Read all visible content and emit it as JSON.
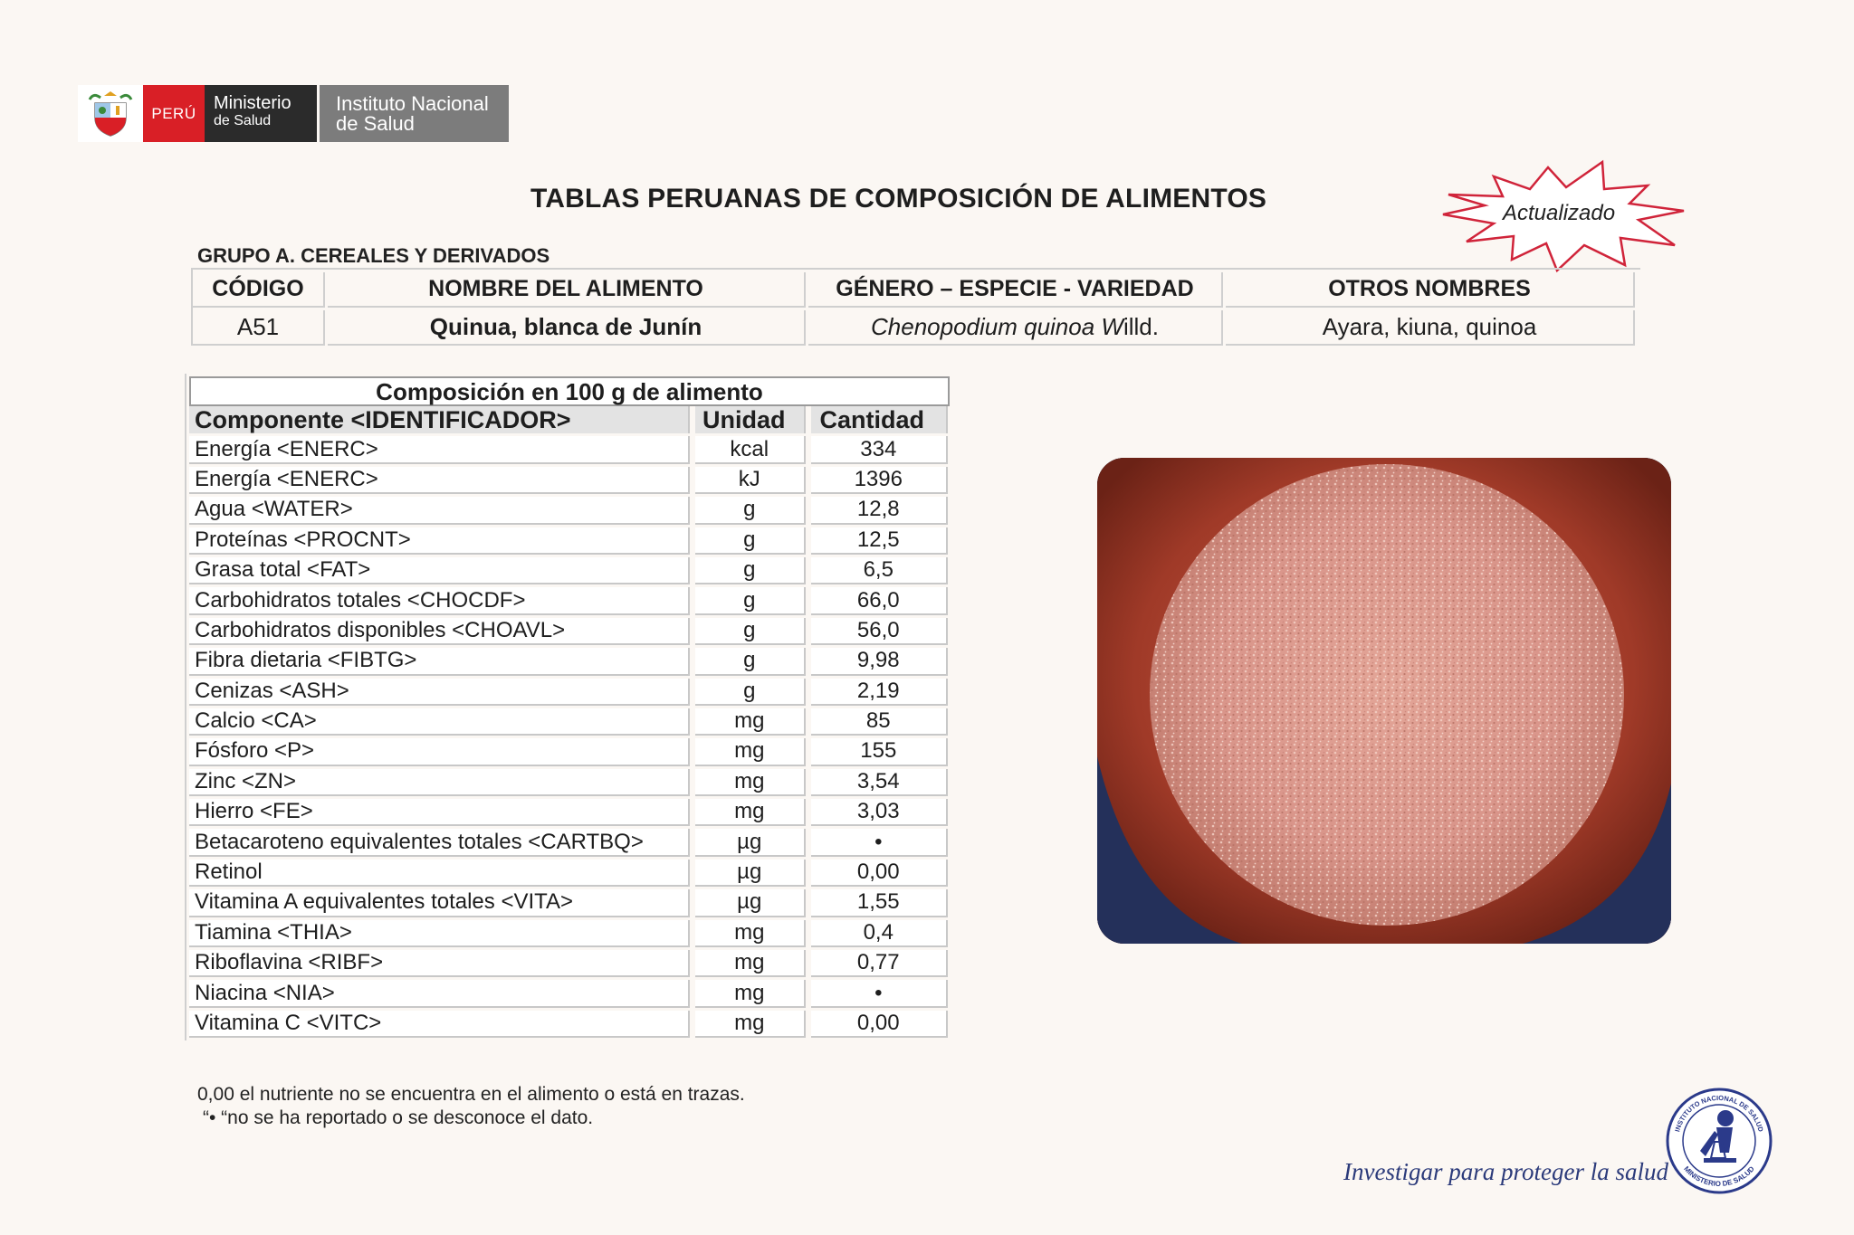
{
  "header": {
    "peru_label": "PERÚ",
    "ministry_line1": "Ministerio",
    "ministry_line2": "de Salud",
    "institute_line1": "Instituto Nacional",
    "institute_line2": "de Salud"
  },
  "title": "TABLAS PERUANAS DE COMPOSICIÓN DE ALIMENTOS",
  "badge": "Actualizado",
  "group": "GRUPO A. CEREALES Y DERIVADOS",
  "food_table": {
    "headers": [
      "CÓDIGO",
      "NOMBRE DEL ALIMENTO",
      "GÉNERO – ESPECIE - VARIEDAD",
      "OTROS NOMBRES"
    ],
    "code": "A51",
    "name": "Quinua, blanca de Junín",
    "scientific_italic": "Chenopodium quinoa W",
    "scientific_rest": "illd.",
    "other_names": "Ayara, kiuna, quinoa"
  },
  "composition": {
    "caption": "Composición en 100 g de alimento",
    "headers": [
      "Componente <IDENTIFICADOR>",
      "Unidad",
      "Cantidad"
    ],
    "rows": [
      {
        "name": "Energía <ENERC>",
        "unit": "kcal",
        "qty": "334"
      },
      {
        "name": "Energía <ENERC>",
        "unit": "kJ",
        "qty": "1396"
      },
      {
        "name": "Agua <WATER>",
        "unit": "g",
        "qty": "12,8"
      },
      {
        "name": "Proteínas <PROCNT>",
        "unit": "g",
        "qty": "12,5"
      },
      {
        "name": "Grasa total <FAT>",
        "unit": "g",
        "qty": "6,5"
      },
      {
        "name": "Carbohidratos totales <CHOCDF>",
        "unit": "g",
        "qty": "66,0"
      },
      {
        "name": "Carbohidratos disponibles <CHOAVL>",
        "unit": "g",
        "qty": "56,0"
      },
      {
        "name": "Fibra dietaria <FIBTG>",
        "unit": "g",
        "qty": "9,98"
      },
      {
        "name": "Cenizas <ASH>",
        "unit": "g",
        "qty": "2,19"
      },
      {
        "name": "Calcio <CA>",
        "unit": "mg",
        "qty": "85"
      },
      {
        "name": "Fósforo <P>",
        "unit": "mg",
        "qty": "155"
      },
      {
        "name": "Zinc <ZN>",
        "unit": "mg",
        "qty": "3,54"
      },
      {
        "name": "Hierro <FE>",
        "unit": "mg",
        "qty": "3,03"
      },
      {
        "name": "Betacaroteno equivalentes totales <CARTBQ>",
        "unit": "µg",
        "qty": "•"
      },
      {
        "name": "Retinol",
        "unit": "µg",
        "qty": "0,00"
      },
      {
        "name": "Vitamina A equivalentes totales <VITA>",
        "unit": "µg",
        "qty": "1,55"
      },
      {
        "name": "Tiamina <THIA>",
        "unit": "mg",
        "qty": "0,4"
      },
      {
        "name": "Riboflavina <RIBF>",
        "unit": "mg",
        "qty": "0,77"
      },
      {
        "name": "Niacina <NIA>",
        "unit": "mg",
        "qty": "•"
      },
      {
        "name": "Vitamina C <VITC>",
        "unit": "mg",
        "qty": "0,00"
      }
    ]
  },
  "footnotes": [
    "0,00 el nutriente no se encuentra en el alimento o está en trazas.",
    "“• “no se ha reportado o se desconoce el dato."
  ],
  "slogan": "Investigar para proteger la salud",
  "seal": {
    "top_text": "INSTITUTO NACIONAL DE SALUD",
    "bottom_text": "MINISTERIO DE SALUD"
  },
  "colors": {
    "peru_red": "#d91f26",
    "ministry_dark": "#2b2b2b",
    "institute_gray": "#7c7c7c",
    "slogan_blue": "#2b3a7a",
    "bowl_red": "#a03a28",
    "quinoa_pink": "#d9958a"
  }
}
